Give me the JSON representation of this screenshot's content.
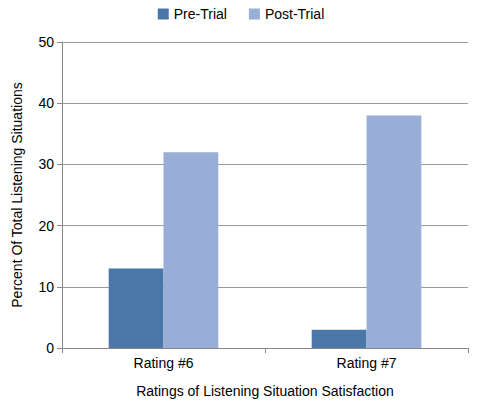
{
  "chart_data": {
    "type": "bar",
    "categories": [
      "Rating #6",
      "Rating #7"
    ],
    "series": [
      {
        "name": "Pre-Trial",
        "color": "#4a76a8",
        "values": [
          13,
          3
        ]
      },
      {
        "name": "Post-Trial",
        "color": "#98aed6",
        "values": [
          32,
          38
        ]
      }
    ],
    "x_label": "Ratings of Listening Situation Satisfaction",
    "y_label": "Percent Of Total Listening Situations",
    "ylim": [
      0,
      50
    ],
    "yticks": [
      0,
      10,
      20,
      30,
      40,
      50
    ],
    "grid": true,
    "legend": "top"
  }
}
